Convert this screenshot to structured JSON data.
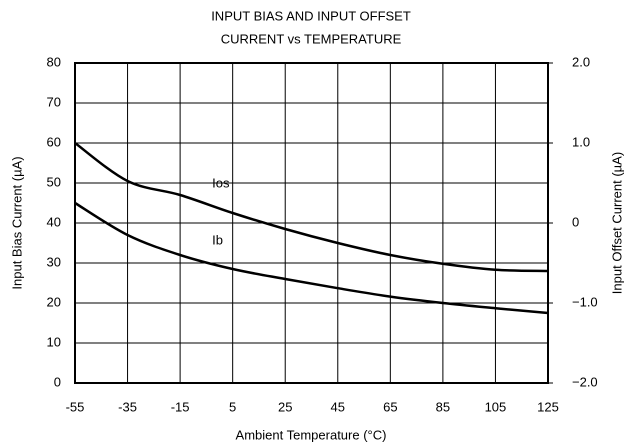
{
  "chart_data": {
    "type": "line",
    "title": [
      "INPUT BIAS AND INPUT OFFSET",
      "CURRENT vs TEMPERATURE"
    ],
    "x_label": "Ambient Temperature (°C)",
    "y_label": "Input Bias Current (µA)",
    "y2_label": "Input Offset Current (µA)",
    "x": [
      -55,
      -35,
      -15,
      5,
      25,
      45,
      65,
      85,
      105,
      125
    ],
    "series": [
      {
        "name": "Ios",
        "color": "#000000",
        "axis": "y2",
        "values": [
          1.0,
          0.525,
          0.35,
          0.125,
          -0.075,
          -0.25,
          -0.4,
          -0.51,
          -0.585,
          -0.6
        ]
      },
      {
        "name": "Ib",
        "color": "#000000",
        "values": [
          45,
          37,
          32,
          28.5,
          26,
          23.7,
          21.6,
          20,
          18.7,
          17.5
        ]
      }
    ],
    "xlim": [
      -55,
      125
    ],
    "xticks": [
      -55,
      -35,
      -15,
      5,
      25,
      45,
      65,
      85,
      105,
      125
    ],
    "ylim": [
      0,
      80
    ],
    "yticks": [
      0,
      10,
      20,
      30,
      40,
      50,
      60,
      70,
      80
    ],
    "y2lim": [
      -2,
      2
    ],
    "y2ticks": [
      {
        "value": -2,
        "label": "−2.0"
      },
      {
        "value": -1,
        "label": "−1.0"
      },
      0,
      {
        "value": 1,
        "label": "1.0"
      },
      {
        "value": 2,
        "label": "2.0"
      }
    ],
    "grid": true
  }
}
